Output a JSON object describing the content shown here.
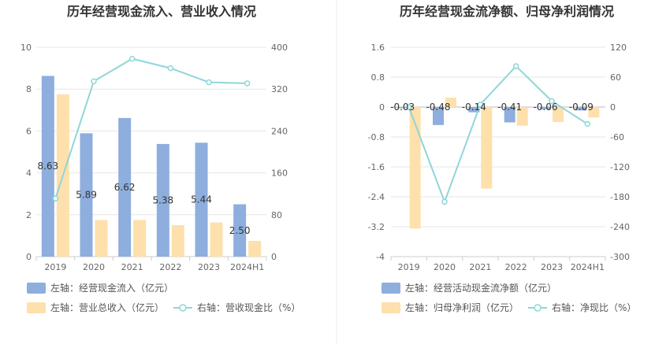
{
  "chart_data": [
    {
      "type": "bar",
      "title": "历年经营现金流入、营业收入情况",
      "categories": [
        "2019",
        "2020",
        "2021",
        "2022",
        "2023",
        "2024H1"
      ],
      "left_axis": {
        "min": 0,
        "max": 10,
        "ticks": [
          "0",
          "2",
          "4",
          "6",
          "8",
          "10"
        ]
      },
      "right_axis": {
        "min": 0,
        "max": 400,
        "ticks": [
          "0",
          "80",
          "160",
          "240",
          "320",
          "400"
        ]
      },
      "series": [
        {
          "name": "左轴：经营现金流入（亿元）",
          "axis": "left",
          "kind": "bar",
          "color": "#8eaedd",
          "values": [
            8.63,
            5.89,
            6.62,
            5.38,
            5.44,
            2.5
          ],
          "labels": [
            "8.63",
            "5.89",
            "6.62",
            "5.38",
            "5.44",
            "2.50"
          ]
        },
        {
          "name": "左轴：营业总收入（亿元）",
          "axis": "left",
          "kind": "bar",
          "color": "#fde0ab",
          "values": [
            7.75,
            1.75,
            1.75,
            1.5,
            1.63,
            0.75
          ]
        },
        {
          "name": "右轴：营收现金比（%）",
          "axis": "right",
          "kind": "line",
          "color": "#8fd6d8",
          "values": [
            111,
            335,
            378,
            360,
            333,
            331
          ]
        }
      ]
    },
    {
      "type": "bar",
      "title": "历年经营现金流净额、归母净利润情况",
      "categories": [
        "2019",
        "2020",
        "2021",
        "2022",
        "2023",
        "2024H1"
      ],
      "left_axis": {
        "min": -4,
        "max": 1.6,
        "ticks": [
          "-4",
          "-3.2",
          "-2.4",
          "-1.6",
          "-0.8",
          "0",
          "0.8",
          "1.6"
        ]
      },
      "right_axis": {
        "min": -300,
        "max": 120,
        "ticks": [
          "-300",
          "-240",
          "-180",
          "-120",
          "-60",
          "0",
          "60",
          "120"
        ]
      },
      "series": [
        {
          "name": "左轴：经营活动现金流净额（亿元）",
          "axis": "left",
          "kind": "bar",
          "color": "#8eaedd",
          "values": [
            -0.03,
            -0.48,
            -0.14,
            -0.41,
            -0.06,
            -0.09
          ],
          "labels": [
            "-0.03",
            "-0.48",
            "-0.14",
            "-0.41",
            "-0.06",
            "-0.09"
          ]
        },
        {
          "name": "左轴：归母净利润（亿元）",
          "axis": "left",
          "kind": "bar",
          "color": "#fde0ab",
          "values": [
            -3.25,
            0.25,
            -2.18,
            -0.5,
            -0.4,
            -0.28
          ]
        },
        {
          "name": "右轴：净现比（%）",
          "axis": "right",
          "kind": "line",
          "color": "#8fd6d8",
          "values": [
            0,
            -190,
            5,
            82,
            12,
            -34
          ]
        }
      ]
    }
  ]
}
